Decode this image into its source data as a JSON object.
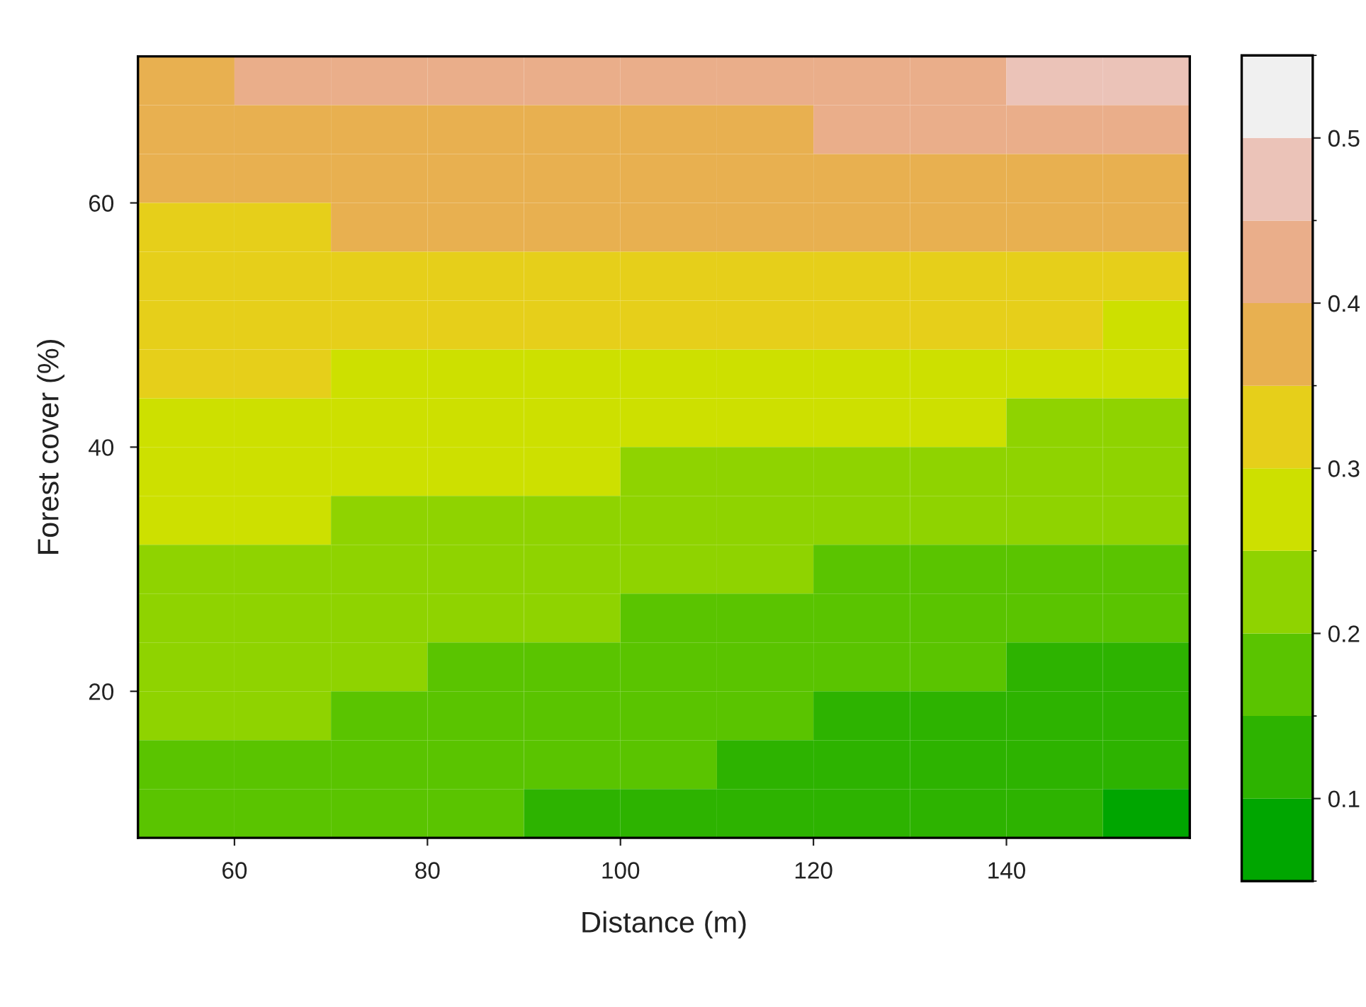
{
  "chart_data": {
    "type": "heatmap",
    "xlabel": "Distance (m)",
    "ylabel": "Forest cover (%)",
    "x": [
      55,
      65,
      75,
      85,
      95,
      105,
      115,
      125,
      135,
      145,
      155
    ],
    "y": [
      70,
      66,
      62,
      58,
      54,
      50,
      46,
      42,
      38,
      34,
      30,
      26,
      22,
      18,
      14,
      10
    ],
    "cells": [
      [
        0.375,
        0.425,
        0.425,
        0.425,
        0.425,
        0.425,
        0.425,
        0.425,
        0.425,
        0.475,
        0.475
      ],
      [
        0.375,
        0.375,
        0.375,
        0.375,
        0.375,
        0.375,
        0.375,
        0.425,
        0.425,
        0.425,
        0.425
      ],
      [
        0.375,
        0.375,
        0.375,
        0.375,
        0.375,
        0.375,
        0.375,
        0.375,
        0.375,
        0.375,
        0.375
      ],
      [
        0.325,
        0.325,
        0.375,
        0.375,
        0.375,
        0.375,
        0.375,
        0.375,
        0.375,
        0.375,
        0.375
      ],
      [
        0.325,
        0.325,
        0.325,
        0.325,
        0.325,
        0.325,
        0.325,
        0.325,
        0.325,
        0.325,
        0.325
      ],
      [
        0.325,
        0.325,
        0.325,
        0.325,
        0.325,
        0.325,
        0.325,
        0.325,
        0.325,
        0.325,
        0.275
      ],
      [
        0.325,
        0.325,
        0.275,
        0.275,
        0.275,
        0.275,
        0.275,
        0.275,
        0.275,
        0.275,
        0.275
      ],
      [
        0.275,
        0.275,
        0.275,
        0.275,
        0.275,
        0.275,
        0.275,
        0.275,
        0.275,
        0.225,
        0.225
      ],
      [
        0.275,
        0.275,
        0.275,
        0.275,
        0.275,
        0.225,
        0.225,
        0.225,
        0.225,
        0.225,
        0.225
      ],
      [
        0.275,
        0.275,
        0.225,
        0.225,
        0.225,
        0.225,
        0.225,
        0.225,
        0.225,
        0.225,
        0.225
      ],
      [
        0.225,
        0.225,
        0.225,
        0.225,
        0.225,
        0.225,
        0.225,
        0.175,
        0.175,
        0.175,
        0.175
      ],
      [
        0.225,
        0.225,
        0.225,
        0.225,
        0.225,
        0.175,
        0.175,
        0.175,
        0.175,
        0.175,
        0.175
      ],
      [
        0.225,
        0.225,
        0.225,
        0.175,
        0.175,
        0.175,
        0.175,
        0.175,
        0.175,
        0.125,
        0.125
      ],
      [
        0.225,
        0.225,
        0.175,
        0.175,
        0.175,
        0.175,
        0.175,
        0.125,
        0.125,
        0.125,
        0.125
      ],
      [
        0.175,
        0.175,
        0.175,
        0.175,
        0.175,
        0.175,
        0.125,
        0.125,
        0.125,
        0.125,
        0.125
      ],
      [
        0.175,
        0.175,
        0.175,
        0.175,
        0.125,
        0.125,
        0.125,
        0.125,
        0.125,
        0.125,
        0.075
      ]
    ],
    "colors": [
      "#00a600",
      "#2db300",
      "#5ac400",
      "#8fd300",
      "#cde000",
      "#e6cf1a",
      "#e8b050",
      "#eaae8a",
      "#ebc3b8",
      "#f0f0f0"
    ],
    "clim": [
      0.05,
      0.55
    ],
    "cticks": [
      0.1,
      0.2,
      0.3,
      0.4,
      0.5
    ],
    "xlim": [
      50,
      159
    ],
    "xticks": [
      60,
      80,
      100,
      120,
      140
    ],
    "ylim": [
      8,
      72
    ],
    "yticks": [
      20,
      40,
      60
    ],
    "grid": false
  }
}
